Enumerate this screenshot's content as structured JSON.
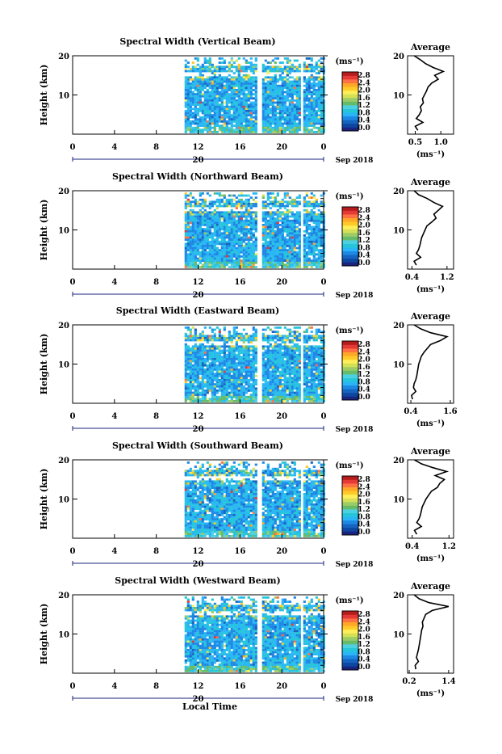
{
  "chart_data": [
    {
      "type": "heatmap",
      "title": "Spectral Width (Vertical Beam)",
      "ylabel": "Height (km)",
      "xlim": [
        0,
        24
      ],
      "ylim": [
        0,
        20
      ],
      "xticks": [
        "0",
        "4",
        "8",
        "12",
        "16",
        "20",
        "0"
      ],
      "yticks": [
        "20",
        "10"
      ],
      "date_day": "20",
      "date_label": "Sep 2018",
      "color_unit": "(ms⁻¹)",
      "color_ticks": [
        "2.8",
        "2.4",
        "2.0",
        "1.6",
        "1.2",
        "0.8",
        "0.4",
        "0.0"
      ],
      "data_start_hour": 10.7,
      "data_gaps": [
        [
          17.6,
          17.9
        ],
        [
          21.6,
          22.0
        ]
      ],
      "average": {
        "title": "Average",
        "xlabel": "(ms⁻¹)",
        "xlim": [
          0.35,
          1.25
        ],
        "xticks": [
          "0.5",
          "1.0"
        ],
        "heights": [
          1,
          2,
          3,
          4,
          5,
          6,
          7,
          8,
          9,
          10,
          11,
          12,
          13,
          14,
          15,
          16,
          17,
          18,
          19,
          20
        ],
        "values": [
          0.55,
          0.5,
          0.65,
          0.52,
          0.58,
          0.62,
          0.6,
          0.66,
          0.64,
          0.68,
          0.72,
          0.75,
          0.82,
          0.95,
          0.88,
          1.05,
          0.85,
          0.7,
          0.6,
          0.48
        ]
      }
    },
    {
      "type": "heatmap",
      "title": "Spectral Width (Northward Beam)",
      "ylabel": "Height (km)",
      "xlim": [
        0,
        24
      ],
      "ylim": [
        0,
        20
      ],
      "xticks": [
        "0",
        "4",
        "8",
        "12",
        "16",
        "20",
        "0"
      ],
      "yticks": [
        "20",
        "10"
      ],
      "date_day": "20",
      "date_label": "Sep 2018",
      "color_unit": "(ms⁻¹)",
      "color_ticks": [
        "2.8",
        "2.4",
        "2.0",
        "1.6",
        "1.2",
        "0.8",
        "0.4",
        "0.0"
      ],
      "data_start_hour": 10.7,
      "data_gaps": [
        [
          17.6,
          17.9
        ],
        [
          21.6,
          22.0
        ]
      ],
      "average": {
        "title": "Average",
        "xlabel": "(ms⁻¹)",
        "xlim": [
          0.3,
          1.35
        ],
        "xticks": [
          "0.4",
          "1.2"
        ],
        "heights": [
          1,
          2,
          3,
          4,
          5,
          6,
          7,
          8,
          9,
          10,
          11,
          12,
          13,
          14,
          15,
          16,
          17,
          18,
          19,
          20
        ],
        "values": [
          0.5,
          0.45,
          0.6,
          0.5,
          0.55,
          0.58,
          0.6,
          0.62,
          0.66,
          0.7,
          0.74,
          0.85,
          0.95,
          0.9,
          1.0,
          1.1,
          0.9,
          0.75,
          0.55,
          0.45
        ]
      }
    },
    {
      "type": "heatmap",
      "title": "Spectral Width (Eastward Beam)",
      "ylabel": "Height (km)",
      "xlim": [
        0,
        24
      ],
      "ylim": [
        0,
        20
      ],
      "xticks": [
        "0",
        "4",
        "8",
        "12",
        "16",
        "20",
        "0"
      ],
      "yticks": [
        "20",
        "10"
      ],
      "date_day": "20",
      "date_label": "Sep 2018",
      "color_unit": "(ms⁻¹)",
      "color_ticks": [
        "2.8",
        "2.4",
        "2.0",
        "1.6",
        "1.2",
        "0.8",
        "0.4",
        "0.0"
      ],
      "data_start_hour": 10.7,
      "data_gaps": [
        [
          17.6,
          17.9
        ],
        [
          21.6,
          22.0
        ]
      ],
      "average": {
        "title": "Average",
        "xlabel": "(ms⁻¹)",
        "xlim": [
          0.3,
          1.7
        ],
        "xticks": [
          "0.4",
          "1.6"
        ],
        "heights": [
          1,
          2,
          3,
          4,
          5,
          6,
          7,
          8,
          9,
          10,
          11,
          12,
          13,
          14,
          15,
          16,
          17,
          18,
          19,
          20
        ],
        "values": [
          0.45,
          0.42,
          0.55,
          0.48,
          0.5,
          0.55,
          0.58,
          0.6,
          0.62,
          0.64,
          0.68,
          0.72,
          0.8,
          0.9,
          1.0,
          1.3,
          1.5,
          1.0,
          0.7,
          0.5
        ]
      }
    },
    {
      "type": "heatmap",
      "title": "Spectral Width (Southward Beam)",
      "ylabel": "Height (km)",
      "xlim": [
        0,
        24
      ],
      "ylim": [
        0,
        20
      ],
      "xticks": [
        "0",
        "4",
        "8",
        "12",
        "16",
        "20",
        "0"
      ],
      "yticks": [
        "20",
        "10"
      ],
      "date_day": "20",
      "date_label": "Sep 2018",
      "color_unit": "(ms⁻¹)",
      "color_ticks": [
        "2.8",
        "2.4",
        "2.0",
        "1.6",
        "1.2",
        "0.8",
        "0.4",
        "0.0"
      ],
      "data_start_hour": 10.7,
      "data_gaps": [
        [
          17.6,
          17.9
        ],
        [
          21.6,
          22.0
        ]
      ],
      "average": {
        "title": "Average",
        "xlabel": "(ms⁻¹)",
        "xlim": [
          0.3,
          1.3
        ],
        "xticks": [
          "0.4",
          "1.2"
        ],
        "heights": [
          1,
          2,
          3,
          4,
          5,
          6,
          7,
          8,
          9,
          10,
          11,
          12,
          13,
          14,
          15,
          16,
          17,
          18,
          19,
          20
        ],
        "values": [
          0.5,
          0.45,
          0.6,
          0.5,
          0.55,
          0.58,
          0.6,
          0.62,
          0.66,
          0.7,
          0.76,
          0.82,
          0.95,
          1.0,
          1.1,
          0.9,
          1.15,
          0.85,
          0.6,
          0.45
        ]
      }
    },
    {
      "type": "heatmap",
      "title": "Spectral Width (Westward Beam)",
      "ylabel": "Height (km)",
      "xlim": [
        0,
        24
      ],
      "ylim": [
        0,
        20
      ],
      "xticks": [
        "0",
        "4",
        "8",
        "12",
        "16",
        "20",
        "0"
      ],
      "yticks": [
        "20",
        "10"
      ],
      "date_day": "20",
      "date_label": "Sep 2018",
      "color_unit": "(ms⁻¹)",
      "color_ticks": [
        "2.8",
        "2.4",
        "2.0",
        "1.6",
        "1.2",
        "0.8",
        "0.4",
        "0.0"
      ],
      "data_start_hour": 10.7,
      "data_gaps": [
        [
          17.6,
          17.9
        ],
        [
          21.6,
          22.0
        ]
      ],
      "average": {
        "title": "Average",
        "xlabel": "(ms⁻¹)",
        "xlim": [
          0.15,
          1.55
        ],
        "xticks": [
          "0.2",
          "1.4"
        ],
        "heights": [
          1,
          2,
          3,
          4,
          5,
          6,
          7,
          8,
          9,
          10,
          11,
          12,
          13,
          14,
          15,
          16,
          17,
          18,
          19,
          20
        ],
        "values": [
          0.4,
          0.38,
          0.48,
          0.42,
          0.45,
          0.48,
          0.5,
          0.52,
          0.54,
          0.56,
          0.58,
          0.62,
          0.6,
          0.65,
          0.7,
          0.9,
          1.4,
          0.8,
          0.5,
          0.35
        ]
      }
    }
  ],
  "footer": {
    "xlabel": "Local Time"
  }
}
